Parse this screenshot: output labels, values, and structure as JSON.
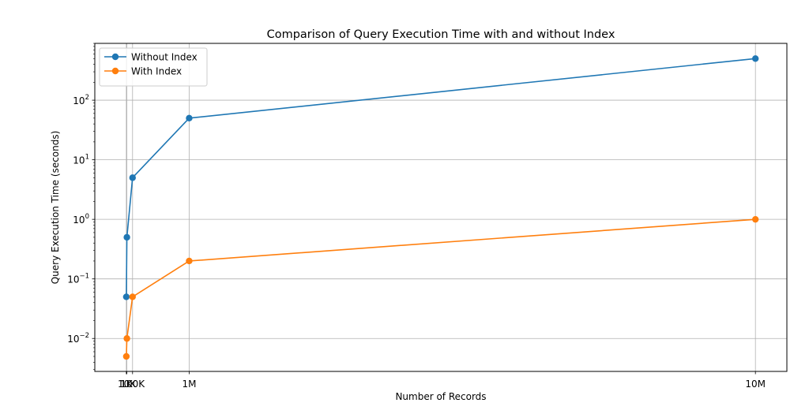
{
  "chart_data": {
    "type": "line",
    "title": "Comparison of Query Execution Time with and without Index",
    "xlabel": "Number of Records",
    "ylabel": "Query Execution Time (seconds)",
    "x": [
      1000,
      10000,
      100000,
      1000000,
      10000000
    ],
    "x_tick_values": [
      1000,
      10000,
      100000,
      1000000,
      10000000
    ],
    "x_tick_labels": [
      "1K",
      "10K",
      "100K",
      "1M",
      "10M"
    ],
    "xlim": [
      -500000,
      10500000
    ],
    "y_scale": "log",
    "ylim": [
      0.0028,
      900
    ],
    "y_tick_values": [
      0.01,
      0.1,
      1,
      10,
      100
    ],
    "y_tick_labels": [
      {
        "base": "10",
        "exp": "−2"
      },
      {
        "base": "10",
        "exp": "−1"
      },
      {
        "base": "10",
        "exp": "0"
      },
      {
        "base": "10",
        "exp": "1"
      },
      {
        "base": "10",
        "exp": "2"
      }
    ],
    "grid": true,
    "legend_position": "top-left",
    "series": [
      {
        "name": "Without Index",
        "color": "#1f77b4",
        "values": [
          0.05,
          0.5,
          5,
          50,
          500
        ]
      },
      {
        "name": "With Index",
        "color": "#ff7f0e",
        "values": [
          0.005,
          0.01,
          0.05,
          0.2,
          1
        ]
      }
    ]
  }
}
